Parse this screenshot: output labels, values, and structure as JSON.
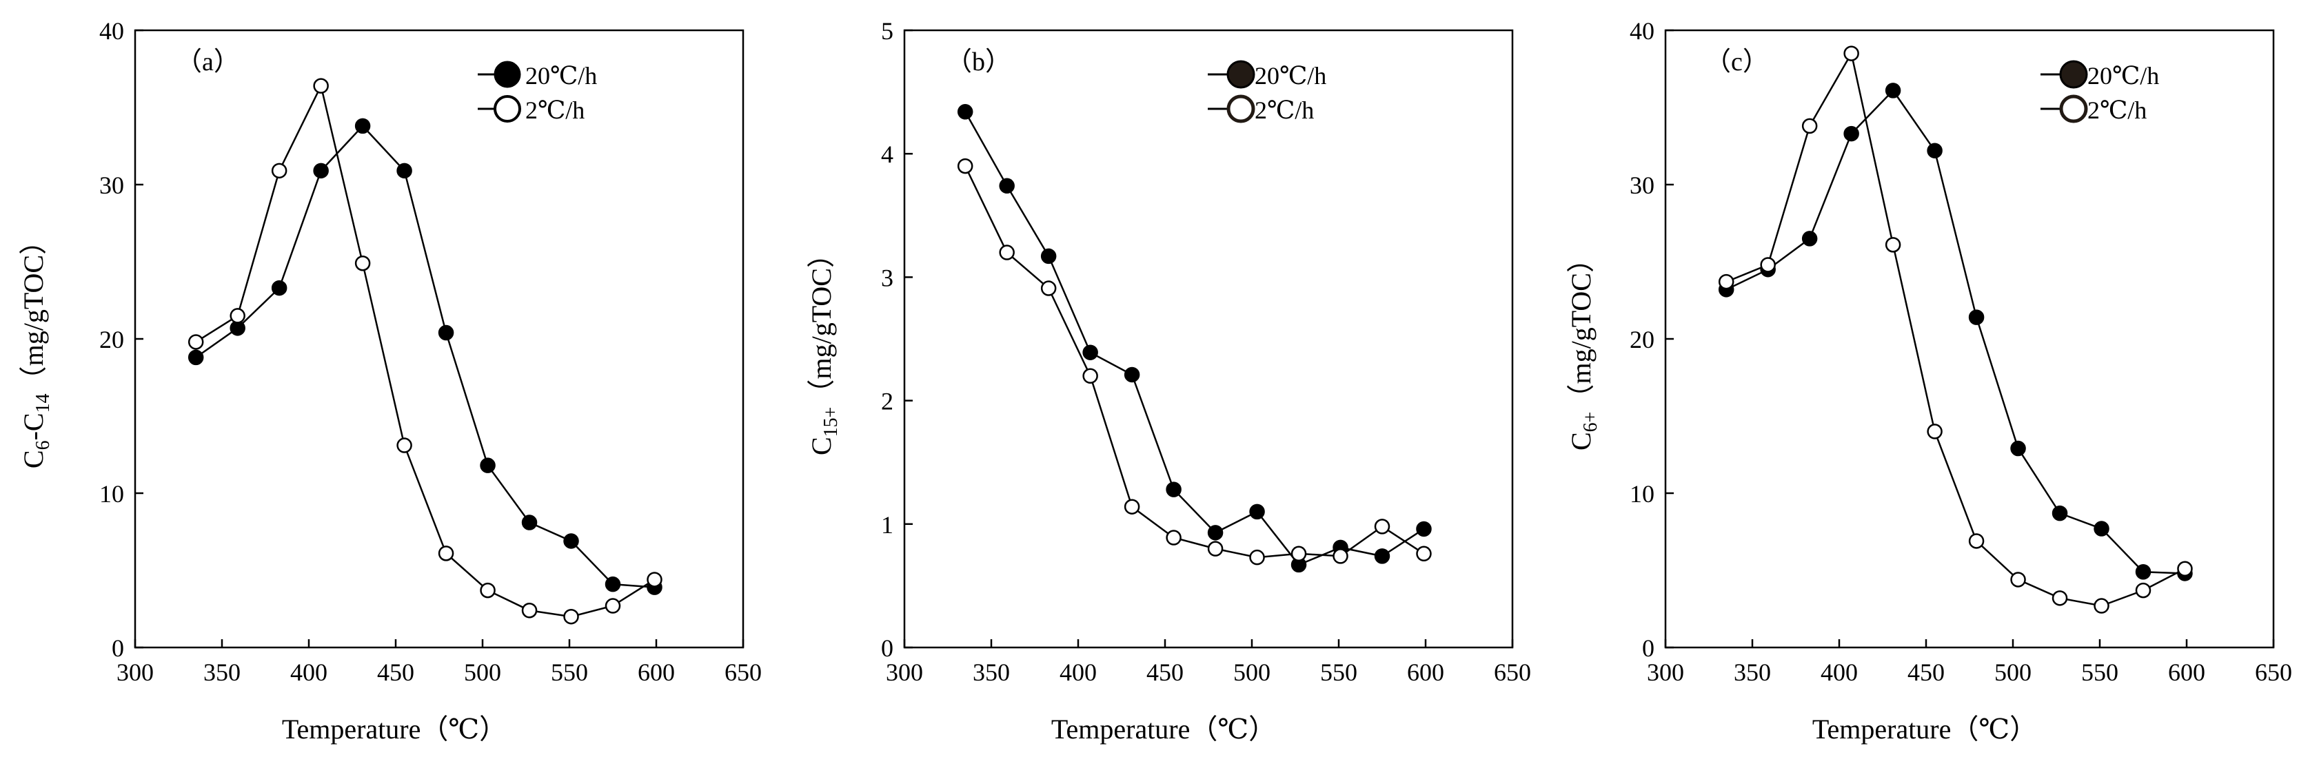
{
  "figure": {
    "x_title": "Temperature（℃）"
  },
  "chart_data": [
    {
      "type": "line",
      "panel_label": "（a）",
      "xlabel": "Temperature（℃）",
      "ylabel": {
        "base": "C",
        "sub1": "6",
        "mid": "-C",
        "sub2": "14",
        "unit": "（mg/gTOC）"
      },
      "xlim": [
        300,
        650
      ],
      "ylim": [
        0,
        40
      ],
      "xticks": [
        300,
        350,
        400,
        450,
        500,
        550,
        600,
        650
      ],
      "yticks": [
        0,
        10,
        20,
        30,
        40
      ],
      "x": [
        335,
        359,
        383,
        407,
        431,
        455,
        479,
        503,
        527,
        551,
        575,
        599
      ],
      "series": [
        {
          "name": "20℃/h",
          "marker": "filled",
          "values": [
            18.8,
            20.7,
            23.3,
            30.9,
            33.8,
            30.9,
            20.4,
            11.8,
            8.1,
            6.9,
            4.1,
            3.9
          ]
        },
        {
          "name": "2℃/h",
          "marker": "open",
          "values": [
            19.8,
            21.5,
            30.9,
            36.4,
            24.9,
            13.1,
            6.1,
            3.7,
            2.4,
            2.0,
            2.7,
            4.4
          ]
        }
      ]
    },
    {
      "type": "line",
      "panel_label": "（b）",
      "xlabel": "Temperature（℃）",
      "ylabel": {
        "base": "C",
        "sub1": "15+",
        "mid": "",
        "sub2": "",
        "unit": "（mg/gTOC）"
      },
      "xlim": [
        300,
        650
      ],
      "ylim": [
        0,
        5
      ],
      "xticks": [
        300,
        350,
        400,
        450,
        500,
        550,
        600,
        650
      ],
      "yticks": [
        0,
        1,
        2,
        3,
        4,
        5
      ],
      "x": [
        335,
        359,
        383,
        407,
        431,
        455,
        479,
        503,
        527,
        551,
        575,
        599
      ],
      "series": [
        {
          "name": "20℃/h",
          "marker": "filled",
          "values": [
            4.34,
            3.74,
            3.17,
            2.39,
            2.21,
            1.28,
            0.93,
            1.1,
            0.67,
            0.81,
            0.74,
            0.96
          ]
        },
        {
          "name": "2℃/h",
          "marker": "open",
          "values": [
            3.9,
            3.2,
            2.91,
            2.2,
            1.14,
            0.89,
            0.8,
            0.73,
            0.76,
            0.74,
            0.98,
            0.76
          ]
        }
      ]
    },
    {
      "type": "line",
      "panel_label": "（c）",
      "xlabel": "Temperature（℃）",
      "ylabel": {
        "base": "C",
        "sub1": "6+",
        "mid": "",
        "sub2": "",
        "unit": "（mg/gTOC）"
      },
      "xlim": [
        300,
        650
      ],
      "ylim": [
        0,
        40
      ],
      "xticks": [
        300,
        350,
        400,
        450,
        500,
        550,
        600,
        650
      ],
      "yticks": [
        0,
        10,
        20,
        30,
        40
      ],
      "x": [
        335,
        359,
        383,
        407,
        431,
        455,
        479,
        503,
        527,
        551,
        575,
        599
      ],
      "series": [
        {
          "name": "20℃/h",
          "marker": "filled",
          "values": [
            23.2,
            24.5,
            26.5,
            33.3,
            36.1,
            32.2,
            21.4,
            12.9,
            8.7,
            7.7,
            4.9,
            4.8
          ]
        },
        {
          "name": "2℃/h",
          "marker": "open",
          "values": [
            23.7,
            24.8,
            33.8,
            38.5,
            26.1,
            14.0,
            6.9,
            4.4,
            3.2,
            2.7,
            3.7,
            5.1
          ]
        }
      ]
    }
  ]
}
